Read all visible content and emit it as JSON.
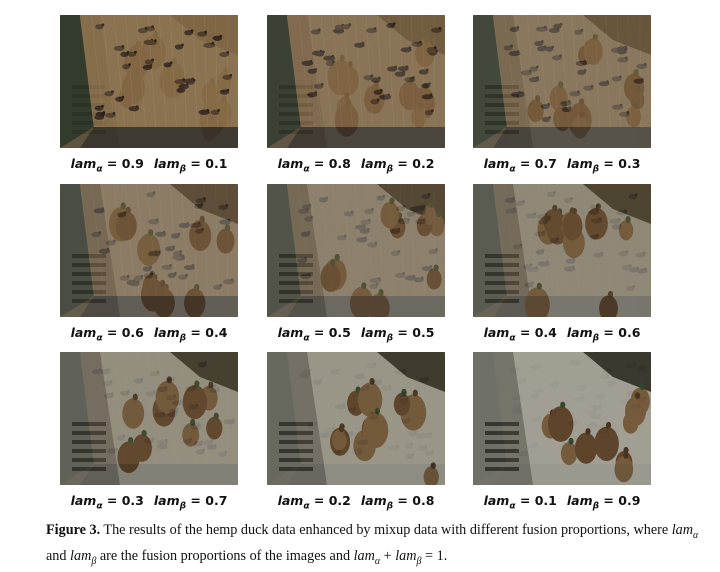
{
  "figure": {
    "panels": [
      {
        "alpha": "0.9",
        "beta": "0.1",
        "mix": 0.1
      },
      {
        "alpha": "0.8",
        "beta": "0.2",
        "mix": 0.2
      },
      {
        "alpha": "0.7",
        "beta": "0.3",
        "mix": 0.3
      },
      {
        "alpha": "0.6",
        "beta": "0.4",
        "mix": 0.4
      },
      {
        "alpha": "0.5",
        "beta": "0.5",
        "mix": 0.5
      },
      {
        "alpha": "0.4",
        "beta": "0.6",
        "mix": 0.6
      },
      {
        "alpha": "0.3",
        "beta": "0.7",
        "mix": 0.7
      },
      {
        "alpha": "0.2",
        "beta": "0.8",
        "mix": 0.8
      },
      {
        "alpha": "0.1",
        "beta": "0.9",
        "mix": 0.9
      }
    ],
    "symbols": {
      "lam": "lam",
      "alpha": "α",
      "beta": "β",
      "equals": "="
    }
  },
  "caption": {
    "label": "Figure 3.",
    "text1": "The results of the hemp duck data enhanced by mixup data with different fusion proportions, where",
    "text2": "and",
    "text3": "are the fusion proportions of the images and",
    "text4": "= 1."
  }
}
